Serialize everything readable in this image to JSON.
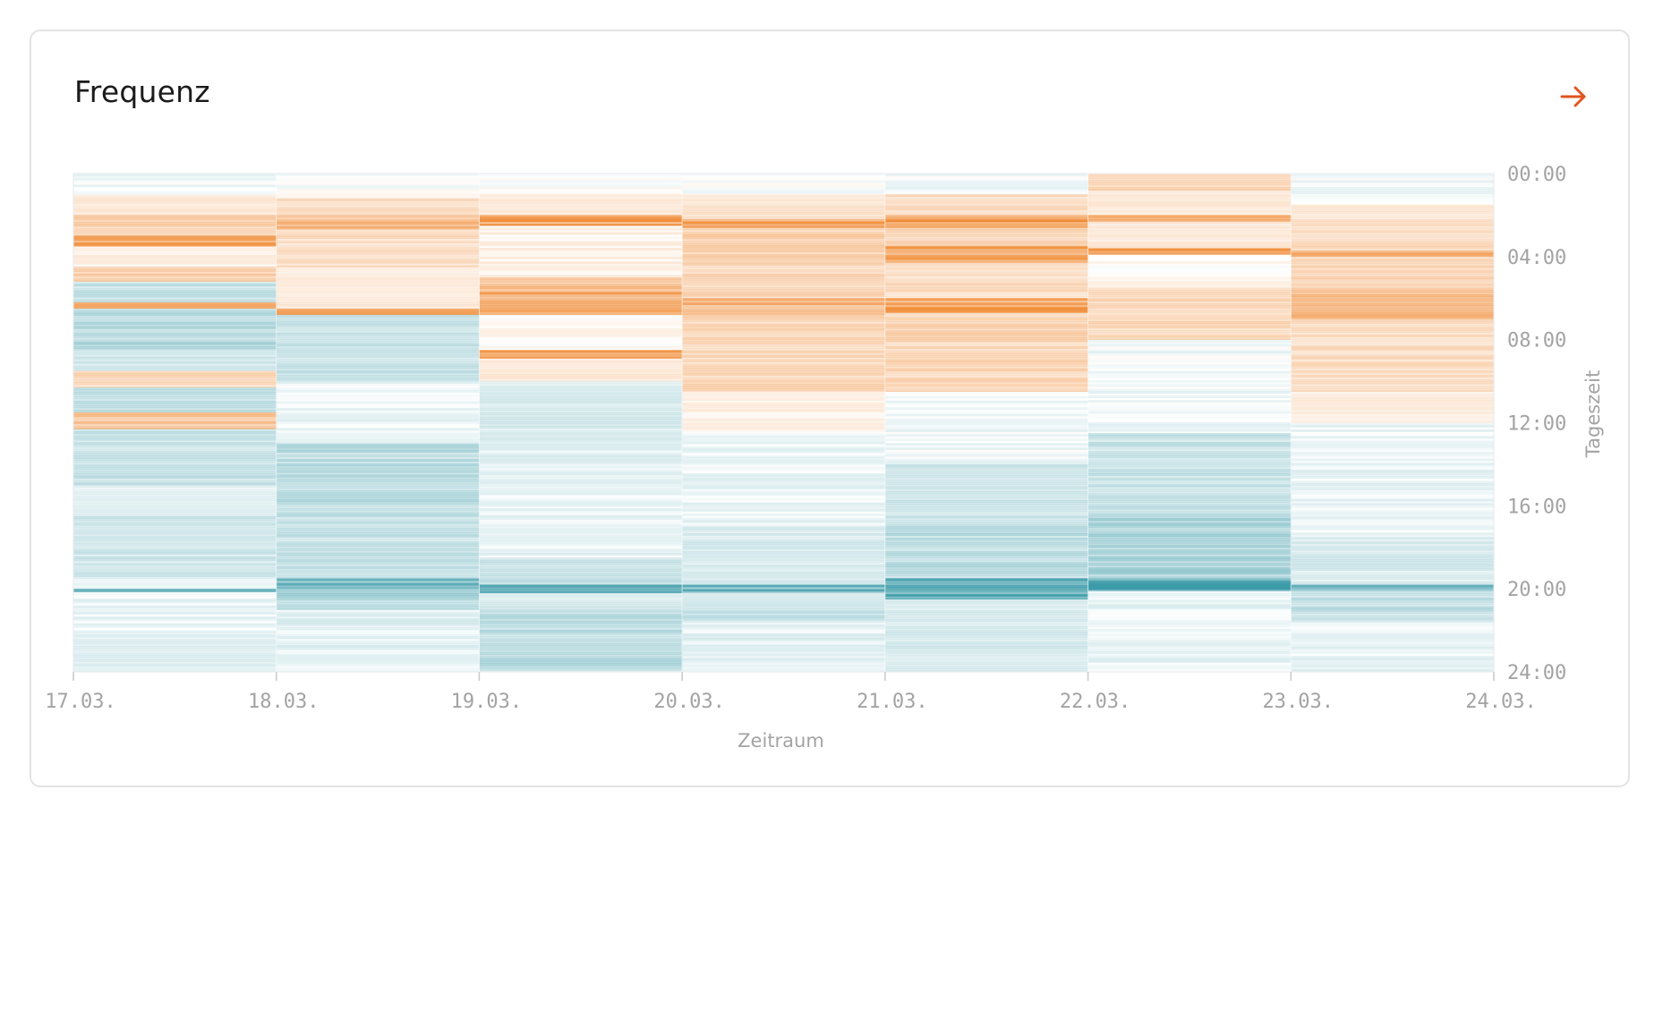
{
  "card": {
    "title": "Frequenz",
    "arrow_icon": "arrow-right-icon",
    "arrow_color": "#e2541f"
  },
  "chart_data": {
    "type": "heatmap",
    "title": "Frequenz",
    "xlabel": "Zeitraum",
    "ylabel": "Tageszeit",
    "x_ticks": [
      "17.03.",
      "18.03.",
      "19.03.",
      "20.03.",
      "21.03.",
      "22.03.",
      "23.03.",
      "24.03."
    ],
    "y_ticks": [
      "00:00",
      "04:00",
      "08:00",
      "12:00",
      "16:00",
      "20:00",
      "24:00"
    ],
    "days": [
      "17.03.",
      "18.03.",
      "19.03.",
      "20.03.",
      "21.03.",
      "22.03.",
      "23.03."
    ],
    "ylim_hours": [
      0,
      24
    ],
    "y_direction": "downward",
    "colors": {
      "high": "#f08a33",
      "low": "#3a9aa8",
      "neutral": "#ffffff"
    },
    "bands": [
      [
        {
          "start": 0.0,
          "end": 1.0,
          "level": -0.05
        },
        {
          "start": 1.0,
          "end": 2.0,
          "level": 0.2
        },
        {
          "start": 2.0,
          "end": 3.0,
          "level": 0.4
        },
        {
          "start": 3.0,
          "end": 3.5,
          "level": 0.85
        },
        {
          "start": 3.5,
          "end": 4.5,
          "level": 0.1
        },
        {
          "start": 4.5,
          "end": 5.2,
          "level": 0.45
        },
        {
          "start": 5.2,
          "end": 6.2,
          "level": -0.3
        },
        {
          "start": 6.2,
          "end": 6.5,
          "level": 0.7
        },
        {
          "start": 6.5,
          "end": 8.5,
          "level": -0.4
        },
        {
          "start": 8.5,
          "end": 9.5,
          "level": -0.25
        },
        {
          "start": 9.5,
          "end": 10.3,
          "level": 0.35
        },
        {
          "start": 10.3,
          "end": 11.5,
          "level": -0.3
        },
        {
          "start": 11.5,
          "end": 12.3,
          "level": 0.55
        },
        {
          "start": 12.3,
          "end": 15.0,
          "level": -0.3
        },
        {
          "start": 15.0,
          "end": 16.5,
          "level": -0.15
        },
        {
          "start": 16.5,
          "end": 19.5,
          "level": -0.25
        },
        {
          "start": 19.5,
          "end": 20.0,
          "level": -0.1
        },
        {
          "start": 20.0,
          "end": 20.15,
          "level": -0.9
        },
        {
          "start": 20.15,
          "end": 22.0,
          "level": -0.08
        },
        {
          "start": 22.0,
          "end": 24.0,
          "level": -0.15
        }
      ],
      [
        {
          "start": 0.0,
          "end": 1.2,
          "level": 0.0
        },
        {
          "start": 1.2,
          "end": 2.0,
          "level": 0.3
        },
        {
          "start": 2.0,
          "end": 2.7,
          "level": 0.6
        },
        {
          "start": 2.7,
          "end": 4.5,
          "level": 0.3
        },
        {
          "start": 4.5,
          "end": 5.0,
          "level": 0.15
        },
        {
          "start": 5.0,
          "end": 6.5,
          "level": 0.2
        },
        {
          "start": 6.5,
          "end": 6.8,
          "level": 0.75
        },
        {
          "start": 6.8,
          "end": 10.0,
          "level": -0.3
        },
        {
          "start": 10.0,
          "end": 13.0,
          "level": -0.08
        },
        {
          "start": 13.0,
          "end": 16.0,
          "level": -0.35
        },
        {
          "start": 16.0,
          "end": 19.5,
          "level": -0.3
        },
        {
          "start": 19.5,
          "end": 20.0,
          "level": -0.8
        },
        {
          "start": 20.0,
          "end": 21.0,
          "level": -0.4
        },
        {
          "start": 21.0,
          "end": 24.0,
          "level": -0.12
        }
      ],
      [
        {
          "start": 0.0,
          "end": 1.0,
          "level": 0.0
        },
        {
          "start": 1.0,
          "end": 2.0,
          "level": 0.2
        },
        {
          "start": 2.0,
          "end": 2.5,
          "level": 0.9
        },
        {
          "start": 2.5,
          "end": 5.0,
          "level": 0.1
        },
        {
          "start": 5.0,
          "end": 5.7,
          "level": 0.6
        },
        {
          "start": 5.7,
          "end": 6.8,
          "level": 0.75
        },
        {
          "start": 6.8,
          "end": 8.5,
          "level": 0.05
        },
        {
          "start": 8.5,
          "end": 8.9,
          "level": 0.8
        },
        {
          "start": 8.9,
          "end": 10.0,
          "level": 0.2
        },
        {
          "start": 10.0,
          "end": 13.0,
          "level": -0.2
        },
        {
          "start": 13.0,
          "end": 18.5,
          "level": -0.1
        },
        {
          "start": 18.5,
          "end": 19.8,
          "level": -0.3
        },
        {
          "start": 19.8,
          "end": 20.2,
          "level": -0.8
        },
        {
          "start": 20.2,
          "end": 21.0,
          "level": -0.2
        },
        {
          "start": 21.0,
          "end": 24.0,
          "level": -0.35
        }
      ],
      [
        {
          "start": 0.0,
          "end": 1.0,
          "level": 0.0
        },
        {
          "start": 1.0,
          "end": 2.2,
          "level": 0.25
        },
        {
          "start": 2.2,
          "end": 2.6,
          "level": 0.8
        },
        {
          "start": 2.6,
          "end": 4.3,
          "level": 0.4
        },
        {
          "start": 4.3,
          "end": 6.0,
          "level": 0.35
        },
        {
          "start": 6.0,
          "end": 6.8,
          "level": 0.65
        },
        {
          "start": 6.8,
          "end": 10.5,
          "level": 0.35
        },
        {
          "start": 10.5,
          "end": 12.5,
          "level": 0.1
        },
        {
          "start": 12.5,
          "end": 17.0,
          "level": -0.08
        },
        {
          "start": 17.0,
          "end": 19.8,
          "level": -0.2
        },
        {
          "start": 19.8,
          "end": 20.2,
          "level": -0.75
        },
        {
          "start": 20.2,
          "end": 21.5,
          "level": -0.3
        },
        {
          "start": 21.5,
          "end": 24.0,
          "level": -0.12
        }
      ],
      [
        {
          "start": 0.0,
          "end": 1.0,
          "level": -0.05
        },
        {
          "start": 1.0,
          "end": 2.0,
          "level": 0.3
        },
        {
          "start": 2.0,
          "end": 2.6,
          "level": 0.85
        },
        {
          "start": 2.6,
          "end": 3.5,
          "level": 0.4
        },
        {
          "start": 3.5,
          "end": 4.3,
          "level": 0.8
        },
        {
          "start": 4.3,
          "end": 6.0,
          "level": 0.3
        },
        {
          "start": 6.0,
          "end": 6.7,
          "level": 0.85
        },
        {
          "start": 6.7,
          "end": 10.5,
          "level": 0.35
        },
        {
          "start": 10.5,
          "end": 14.0,
          "level": -0.05
        },
        {
          "start": 14.0,
          "end": 17.0,
          "level": -0.25
        },
        {
          "start": 17.0,
          "end": 19.5,
          "level": -0.35
        },
        {
          "start": 19.5,
          "end": 20.5,
          "level": -0.9
        },
        {
          "start": 20.5,
          "end": 24.0,
          "level": -0.2
        }
      ],
      [
        {
          "start": 0.0,
          "end": 0.8,
          "level": 0.4
        },
        {
          "start": 0.8,
          "end": 2.0,
          "level": 0.2
        },
        {
          "start": 2.0,
          "end": 2.3,
          "level": 0.75
        },
        {
          "start": 2.3,
          "end": 3.6,
          "level": 0.2
        },
        {
          "start": 3.6,
          "end": 3.9,
          "level": 0.85
        },
        {
          "start": 3.9,
          "end": 5.5,
          "level": 0.05
        },
        {
          "start": 5.5,
          "end": 8.0,
          "level": 0.35
        },
        {
          "start": 8.0,
          "end": 12.5,
          "level": -0.05
        },
        {
          "start": 12.5,
          "end": 16.5,
          "level": -0.3
        },
        {
          "start": 16.5,
          "end": 19.5,
          "level": -0.45
        },
        {
          "start": 19.5,
          "end": 20.1,
          "level": -0.95
        },
        {
          "start": 20.1,
          "end": 24.0,
          "level": -0.1
        }
      ],
      [
        {
          "start": 0.0,
          "end": 1.5,
          "level": -0.05
        },
        {
          "start": 1.5,
          "end": 2.2,
          "level": 0.2
        },
        {
          "start": 2.2,
          "end": 3.7,
          "level": 0.3
        },
        {
          "start": 3.7,
          "end": 4.0,
          "level": 0.7
        },
        {
          "start": 4.0,
          "end": 5.5,
          "level": 0.35
        },
        {
          "start": 5.5,
          "end": 7.0,
          "level": 0.6
        },
        {
          "start": 7.0,
          "end": 10.5,
          "level": 0.3
        },
        {
          "start": 10.5,
          "end": 12.0,
          "level": 0.15
        },
        {
          "start": 12.0,
          "end": 17.5,
          "level": -0.08
        },
        {
          "start": 17.5,
          "end": 19.8,
          "level": -0.2
        },
        {
          "start": 19.8,
          "end": 20.1,
          "level": -0.8
        },
        {
          "start": 20.1,
          "end": 21.5,
          "level": -0.35
        },
        {
          "start": 21.5,
          "end": 24.0,
          "level": -0.1
        }
      ]
    ]
  }
}
